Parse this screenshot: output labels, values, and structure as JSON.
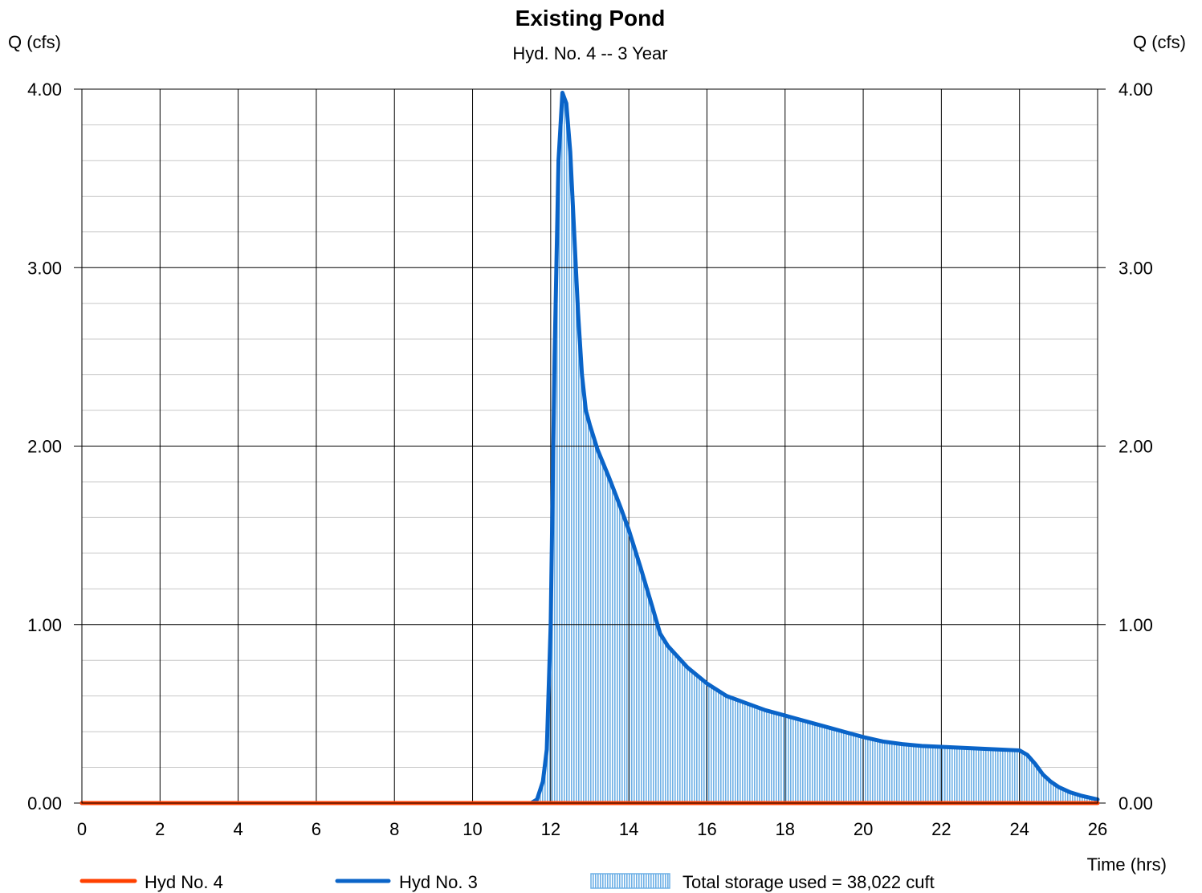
{
  "chart_data": {
    "type": "area",
    "title": "Existing Pond",
    "subtitle": "Hyd. No. 4 -- 3 Year",
    "ylabel_left": "Q (cfs)",
    "ylabel_right": "Q (cfs)",
    "xlabel": "Time (hrs)",
    "xlim": [
      0,
      26
    ],
    "ylim": [
      0,
      4
    ],
    "x_ticks": [
      "0",
      "2",
      "4",
      "6",
      "8",
      "10",
      "12",
      "14",
      "16",
      "18",
      "20",
      "22",
      "24",
      "26"
    ],
    "y_ticks": [
      "0.00",
      "1.00",
      "2.00",
      "3.00",
      "4.00"
    ],
    "grid": true,
    "legend_placement": "bottom",
    "series": [
      {
        "name": "Hyd No. 4",
        "color": "#ff4000",
        "x": [
          0,
          26
        ],
        "y": [
          0,
          0
        ]
      },
      {
        "name": "Hyd No. 3",
        "color": "#0a64c8",
        "x": [
          0,
          11.5,
          11.65,
          11.8,
          11.9,
          12.0,
          12.1,
          12.2,
          12.3,
          12.4,
          12.5,
          12.6,
          12.7,
          12.8,
          12.9,
          13.0,
          13.2,
          13.5,
          13.8,
          14.0,
          14.3,
          14.6,
          14.8,
          15.0,
          15.5,
          16.0,
          16.5,
          17.0,
          17.5,
          18.0,
          18.5,
          19.0,
          19.5,
          20.0,
          20.5,
          21.0,
          21.5,
          22.0,
          22.5,
          23.0,
          23.5,
          24.0,
          24.2,
          24.4,
          24.6,
          24.8,
          25.0,
          25.3,
          25.6,
          26.0
        ],
        "y": [
          0,
          0,
          0.02,
          0.12,
          0.3,
          1.0,
          2.5,
          3.6,
          3.98,
          3.92,
          3.65,
          3.2,
          2.75,
          2.4,
          2.2,
          2.12,
          1.98,
          1.82,
          1.65,
          1.53,
          1.32,
          1.1,
          0.95,
          0.88,
          0.76,
          0.67,
          0.6,
          0.56,
          0.52,
          0.49,
          0.46,
          0.43,
          0.4,
          0.37,
          0.345,
          0.33,
          0.32,
          0.315,
          0.31,
          0.305,
          0.3,
          0.295,
          0.27,
          0.22,
          0.16,
          0.12,
          0.09,
          0.06,
          0.04,
          0.02
        ]
      }
    ],
    "storage_label": "Total storage used = 38,022 cuft",
    "storage_fill_color": "#8cc4ec"
  }
}
